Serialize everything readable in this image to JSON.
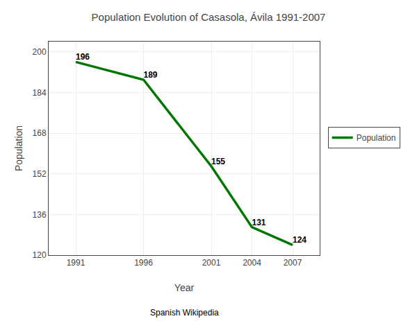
{
  "chart_data": {
    "type": "line",
    "title": "Population Evolution of Casasola, Ávila 1991-2007",
    "xlabel": "Year",
    "ylabel": "Population",
    "footnote": "Spanish Wikipedia",
    "x": [
      1991,
      1996,
      2001,
      2004,
      2007
    ],
    "series": [
      {
        "name": "Population",
        "color": "#007700",
        "values": [
          196,
          189,
          155,
          131,
          124
        ]
      }
    ],
    "xlim": [
      1989,
      2009
    ],
    "xticks": [
      1991,
      1996,
      2001,
      2004,
      2007
    ],
    "ylim": [
      120,
      204
    ],
    "yticks": [
      120,
      136,
      152,
      168,
      184,
      200
    ],
    "grid": true,
    "legend": "right",
    "data_labels": true
  }
}
